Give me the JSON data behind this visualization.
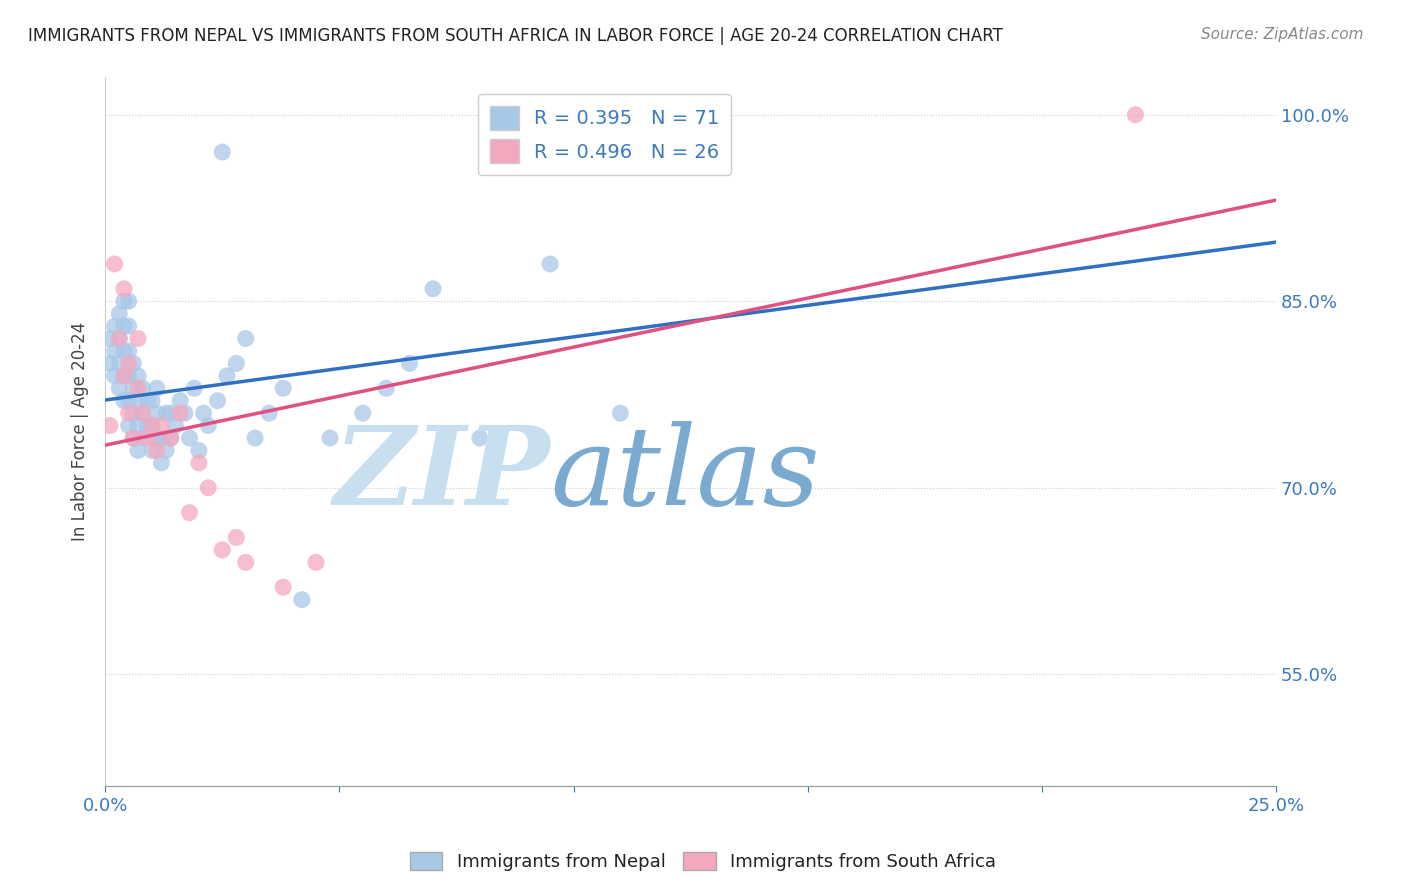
{
  "title": "IMMIGRANTS FROM NEPAL VS IMMIGRANTS FROM SOUTH AFRICA IN LABOR FORCE | AGE 20-24 CORRELATION CHART",
  "source": "Source: ZipAtlas.com",
  "ylabel": "In Labor Force | Age 20-24",
  "xlim": [
    0.0,
    0.25
  ],
  "ylim": [
    0.46,
    1.03
  ],
  "yticks": [
    0.55,
    0.7,
    0.85,
    1.0
  ],
  "ytick_labels": [
    "55.0%",
    "70.0%",
    "85.0%",
    "100.0%"
  ],
  "nepal_R": 0.395,
  "nepal_N": 71,
  "sa_R": 0.496,
  "sa_N": 26,
  "nepal_color": "#a8c8e8",
  "sa_color": "#f4a8be",
  "nepal_line_color": "#3070c0",
  "sa_line_color": "#e05080",
  "title_color": "#222222",
  "tick_color": "#3a7abf",
  "watermark_zip_color": "#c8dff0",
  "watermark_atlas_color": "#7aaad0",
  "background_color": "#ffffff",
  "nepal_x": [
    0.001,
    0.001,
    0.002,
    0.002,
    0.002,
    0.003,
    0.003,
    0.003,
    0.003,
    0.004,
    0.004,
    0.004,
    0.004,
    0.004,
    0.005,
    0.005,
    0.005,
    0.005,
    0.005,
    0.005,
    0.006,
    0.006,
    0.006,
    0.006,
    0.007,
    0.007,
    0.007,
    0.007,
    0.008,
    0.008,
    0.008,
    0.009,
    0.009,
    0.01,
    0.01,
    0.01,
    0.011,
    0.011,
    0.011,
    0.012,
    0.012,
    0.013,
    0.013,
    0.014,
    0.014,
    0.015,
    0.016,
    0.017,
    0.018,
    0.019,
    0.02,
    0.021,
    0.022,
    0.024,
    0.025,
    0.026,
    0.028,
    0.03,
    0.032,
    0.035,
    0.038,
    0.042,
    0.048,
    0.055,
    0.06,
    0.065,
    0.07,
    0.08,
    0.095,
    0.11,
    0.125
  ],
  "nepal_y": [
    0.8,
    0.82,
    0.79,
    0.81,
    0.83,
    0.78,
    0.8,
    0.82,
    0.84,
    0.77,
    0.79,
    0.81,
    0.83,
    0.85,
    0.75,
    0.77,
    0.79,
    0.81,
    0.83,
    0.85,
    0.74,
    0.76,
    0.78,
    0.8,
    0.73,
    0.75,
    0.77,
    0.79,
    0.74,
    0.76,
    0.78,
    0.75,
    0.77,
    0.73,
    0.75,
    0.77,
    0.74,
    0.76,
    0.78,
    0.72,
    0.74,
    0.73,
    0.76,
    0.74,
    0.76,
    0.75,
    0.77,
    0.76,
    0.74,
    0.78,
    0.73,
    0.76,
    0.75,
    0.77,
    0.97,
    0.79,
    0.8,
    0.82,
    0.74,
    0.76,
    0.78,
    0.61,
    0.74,
    0.76,
    0.78,
    0.8,
    0.86,
    0.74,
    0.88,
    0.76,
    1.0
  ],
  "sa_x": [
    0.001,
    0.002,
    0.003,
    0.004,
    0.004,
    0.005,
    0.005,
    0.006,
    0.007,
    0.007,
    0.008,
    0.009,
    0.01,
    0.011,
    0.012,
    0.014,
    0.016,
    0.018,
    0.02,
    0.022,
    0.025,
    0.028,
    0.03,
    0.038,
    0.045,
    0.22
  ],
  "sa_y": [
    0.75,
    0.88,
    0.82,
    0.79,
    0.86,
    0.76,
    0.8,
    0.74,
    0.78,
    0.82,
    0.76,
    0.74,
    0.75,
    0.73,
    0.75,
    0.74,
    0.76,
    0.68,
    0.72,
    0.7,
    0.65,
    0.66,
    0.64,
    0.62,
    0.64,
    1.0
  ]
}
